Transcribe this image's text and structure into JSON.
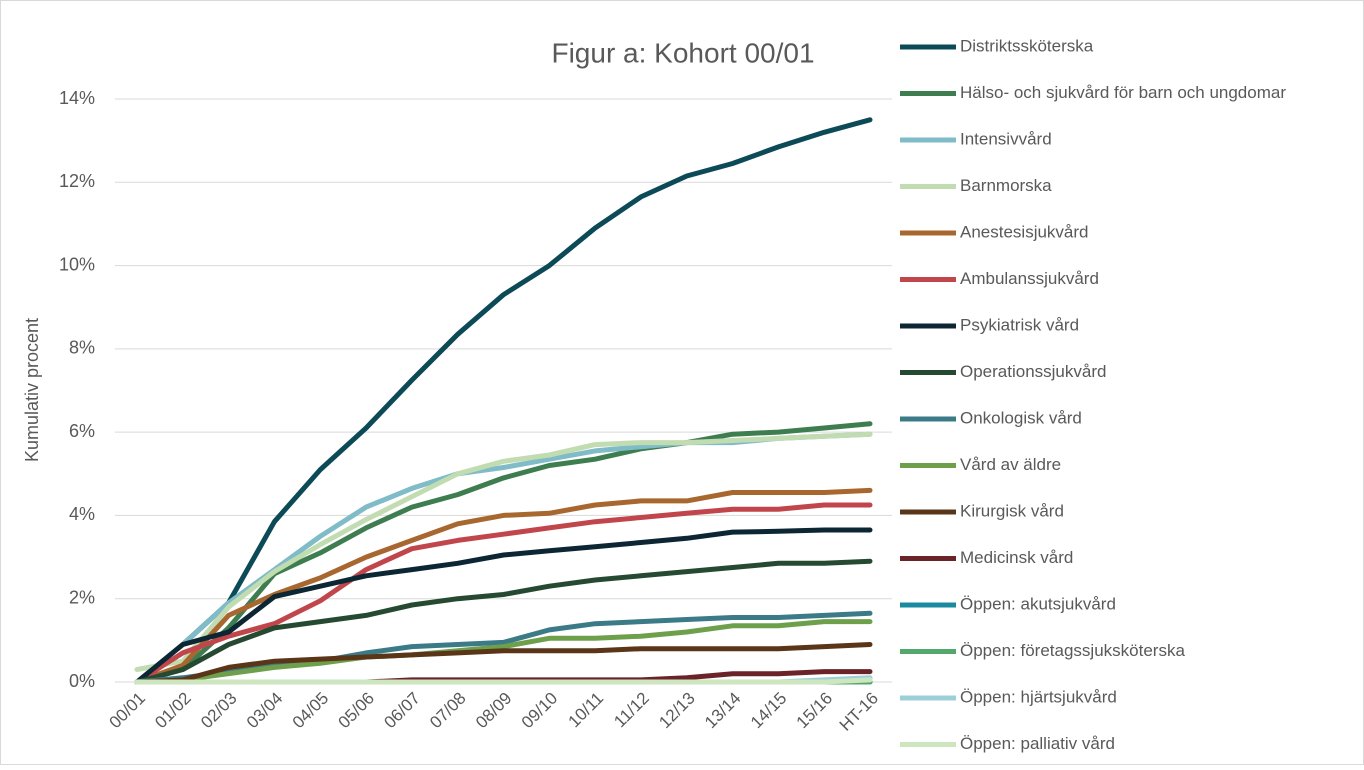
{
  "chart_data": {
    "type": "line",
    "title": "Figur a: Kohort 00/01",
    "y_label": "Kumulativ procent",
    "categories": [
      "00/01",
      "01/02",
      "02/03",
      "03/04",
      "04/05",
      "05/06",
      "06/07",
      "07/08",
      "08/09",
      "09/10",
      "10/11",
      "11/12",
      "12/13",
      "13/14",
      "14/15",
      "15/16",
      "HT-16"
    ],
    "ylim": [
      0,
      14
    ],
    "yticks": [
      {
        "value": 0,
        "label": "0%"
      },
      {
        "value": 2,
        "label": "2%"
      },
      {
        "value": 4,
        "label": "4%"
      },
      {
        "value": 6,
        "label": "6%"
      },
      {
        "value": 8,
        "label": "8%"
      },
      {
        "value": 10,
        "label": "10%"
      },
      {
        "value": 12,
        "label": "12%"
      },
      {
        "value": 14,
        "label": "14%"
      }
    ],
    "grid": true,
    "legend": "right",
    "series": [
      {
        "name": "Distriktssköterska",
        "color": "#0d4a57",
        "values": [
          0,
          0.9,
          1.9,
          3.85,
          5.1,
          6.1,
          7.25,
          8.35,
          9.3,
          10.0,
          10.9,
          11.65,
          12.15,
          12.45,
          12.85,
          13.2,
          13.5
        ]
      },
      {
        "name": "Hälso- och sjukvård för barn och ungdomar",
        "color": "#3e7d4f",
        "values": [
          0,
          0.3,
          1.3,
          2.6,
          3.1,
          3.7,
          4.2,
          4.5,
          4.9,
          5.2,
          5.35,
          5.6,
          5.75,
          5.95,
          6.0,
          6.1,
          6.2
        ]
      },
      {
        "name": "Intensivvård",
        "color": "#7fbcc8",
        "values": [
          0,
          0.9,
          1.9,
          2.7,
          3.5,
          4.2,
          4.65,
          5.0,
          5.15,
          5.35,
          5.55,
          5.65,
          5.75,
          5.75,
          5.85,
          5.9,
          5.95
        ]
      },
      {
        "name": "Barnmorska",
        "color": "#c2dcb2",
        "values": [
          0.3,
          0.5,
          1.8,
          2.65,
          3.3,
          3.9,
          4.45,
          5.0,
          5.3,
          5.45,
          5.7,
          5.75,
          5.75,
          5.8,
          5.85,
          5.9,
          5.95
        ]
      },
      {
        "name": "Anestesisjukvård",
        "color": "#a8672f",
        "values": [
          0,
          0.4,
          1.6,
          2.1,
          2.5,
          3.0,
          3.4,
          3.8,
          4.0,
          4.05,
          4.25,
          4.35,
          4.35,
          4.55,
          4.55,
          4.55,
          4.6
        ]
      },
      {
        "name": "Ambulanssjukvård",
        "color": "#c0464c",
        "values": [
          0,
          0.7,
          1.1,
          1.4,
          1.95,
          2.7,
          3.2,
          3.4,
          3.55,
          3.7,
          3.85,
          3.95,
          4.05,
          4.15,
          4.15,
          4.25,
          4.25
        ]
      },
      {
        "name": "Psykiatrisk vård",
        "color": "#0c2633",
        "values": [
          0,
          0.9,
          1.2,
          2.05,
          2.3,
          2.55,
          2.7,
          2.85,
          3.05,
          3.15,
          3.25,
          3.35,
          3.45,
          3.6,
          3.62,
          3.65,
          3.65
        ]
      },
      {
        "name": "Operationssjukvård",
        "color": "#264a31",
        "values": [
          0,
          0.3,
          0.9,
          1.3,
          1.45,
          1.6,
          1.85,
          2.0,
          2.1,
          2.3,
          2.45,
          2.55,
          2.65,
          2.75,
          2.85,
          2.85,
          2.9
        ]
      },
      {
        "name": "Onkologisk vård",
        "color": "#3b7a87",
        "values": [
          0,
          0.1,
          0.25,
          0.4,
          0.5,
          0.7,
          0.85,
          0.9,
          0.95,
          1.25,
          1.4,
          1.45,
          1.5,
          1.55,
          1.55,
          1.6,
          1.65
        ]
      },
      {
        "name": "Vård av äldre",
        "color": "#6ea04c",
        "values": [
          0,
          0.05,
          0.2,
          0.35,
          0.45,
          0.6,
          0.65,
          0.75,
          0.85,
          1.05,
          1.05,
          1.1,
          1.2,
          1.35,
          1.35,
          1.45,
          1.45
        ]
      },
      {
        "name": "Kirurgisk vård",
        "color": "#5a3518",
        "values": [
          0,
          0.05,
          0.35,
          0.5,
          0.55,
          0.6,
          0.65,
          0.7,
          0.75,
          0.75,
          0.75,
          0.8,
          0.8,
          0.8,
          0.8,
          0.85,
          0.9
        ]
      },
      {
        "name": "Medicinsk vård",
        "color": "#6a2328",
        "values": [
          0,
          0,
          0,
          0,
          0,
          0,
          0.05,
          0.05,
          0.05,
          0.05,
          0.05,
          0.05,
          0.1,
          0.2,
          0.2,
          0.25,
          0.25
        ]
      },
      {
        "name": "Öppen: akutsjukvård",
        "color": "#1a8aa0",
        "values": [
          0,
          0,
          0,
          0,
          0,
          0,
          0,
          0,
          0,
          0,
          0,
          0,
          0,
          0,
          0,
          0,
          0
        ]
      },
      {
        "name": "Öppen: företagssjuksköterska",
        "color": "#52a86d",
        "values": [
          0,
          0,
          0,
          0,
          0,
          0,
          0,
          0,
          0,
          0,
          0,
          0,
          0,
          0,
          0,
          0,
          0
        ]
      },
      {
        "name": "Öppen: hjärtsjukvård",
        "color": "#9ccfd8",
        "values": [
          0,
          0,
          0,
          0,
          0,
          0,
          0,
          0,
          0,
          0,
          0,
          0,
          0,
          0,
          0,
          0.05,
          0.1
        ]
      },
      {
        "name": "Öppen: palliativ vård",
        "color": "#cde6c0",
        "values": [
          0,
          0,
          0,
          0,
          0,
          0,
          0,
          0,
          0,
          0,
          0,
          0,
          0,
          0,
          0,
          0,
          0.05
        ]
      }
    ]
  }
}
